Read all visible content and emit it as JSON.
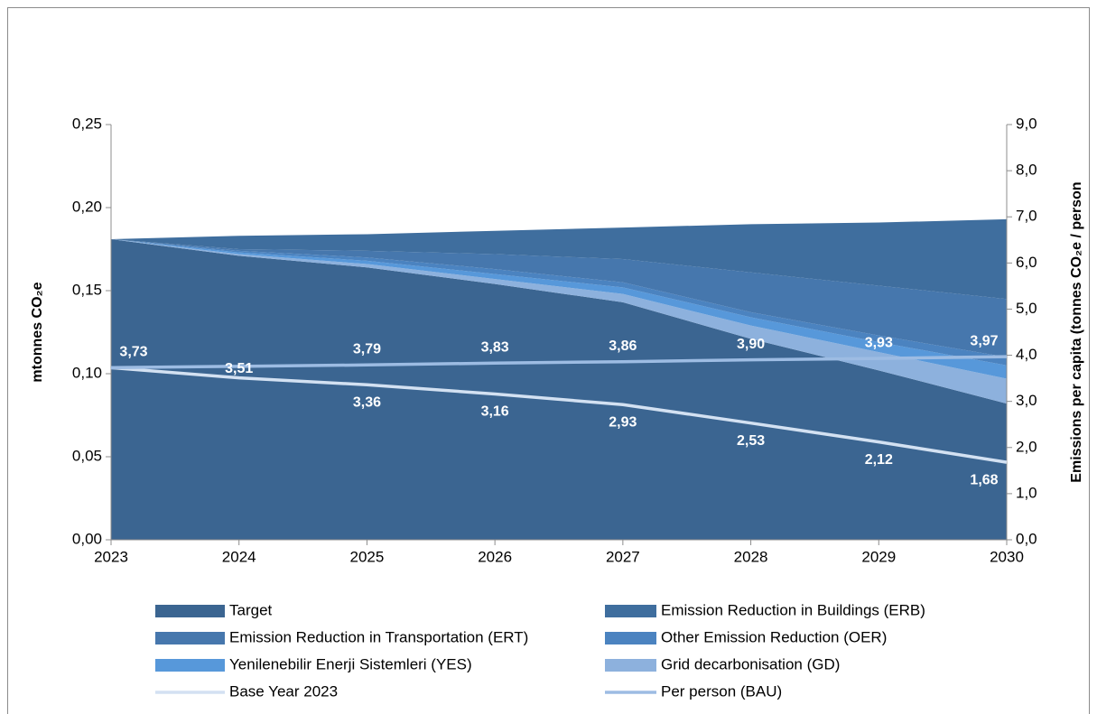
{
  "chart_data": {
    "type": "stacked_area",
    "categories": [
      "2023",
      "2024",
      "2025",
      "2026",
      "2027",
      "2028",
      "2029",
      "2030"
    ],
    "ylabel": "mtonnes CO₂e",
    "y2label": "Emissions per capita (tonnes CO₂e / person",
    "ylim": [
      0,
      0.25
    ],
    "yticks": [
      {
        "value": 0,
        "label": "0,00"
      },
      {
        "value": 0.05,
        "label": "0,05"
      },
      {
        "value": 0.1,
        "label": "0,10"
      },
      {
        "value": 0.15,
        "label": "0,15"
      },
      {
        "value": 0.2,
        "label": "0,20"
      },
      {
        "value": 0.25,
        "label": "0,25"
      }
    ],
    "y2lim": [
      0,
      9
    ],
    "y2ticks": [
      {
        "value": 0,
        "label": "0,0"
      },
      {
        "value": 1,
        "label": "1,0"
      },
      {
        "value": 2,
        "label": "2,0"
      },
      {
        "value": 3,
        "label": "3,0"
      },
      {
        "value": 4,
        "label": "4,0"
      },
      {
        "value": 5,
        "label": "5,0"
      },
      {
        "value": 6,
        "label": "6,0"
      },
      {
        "value": 7,
        "label": "7,0"
      },
      {
        "value": 8,
        "label": "8,0"
      },
      {
        "value": 9,
        "label": "9,0"
      }
    ],
    "series": [
      {
        "name": "Target",
        "color": "#3b6591",
        "values": [
          0.181,
          0.171,
          0.164,
          0.154,
          0.143,
          0.121,
          0.102,
          0.082
        ]
      },
      {
        "name": "Emission Reduction in Buildings (ERB)",
        "color": "#3f6e9e",
        "values": [
          0,
          0.008,
          0.01,
          0.014,
          0.019,
          0.029,
          0.038,
          0.048
        ],
        "stack_top": true
      },
      {
        "name": "Emission Reduction in Transportation (ERT)",
        "color": "#4677ad",
        "values": [
          0,
          0.001,
          0.004,
          0.009,
          0.014,
          0.024,
          0.03,
          0.035
        ]
      },
      {
        "name": "Other Emission Reduction (OER)",
        "color": "#4b83c0",
        "values": [
          0,
          0.001,
          0.002,
          0.003,
          0.003,
          0.003,
          0.004,
          0.005
        ]
      },
      {
        "name": "Yenilenebilir Enerji Sistemleri (YES)",
        "color": "#5798da",
        "values": [
          0,
          0.001,
          0.002,
          0.003,
          0.004,
          0.005,
          0.006,
          0.008
        ]
      },
      {
        "name": "Grid decarbonisation (GD)",
        "color": "#8db1dd",
        "values": [
          0,
          0.001,
          0.002,
          0.003,
          0.005,
          0.008,
          0.011,
          0.015
        ]
      },
      {
        "name": "Base Year 2023",
        "color": "#d3e1f2",
        "type": "line",
        "axis": "y2",
        "values": [
          3.73,
          3.51,
          3.36,
          3.16,
          2.93,
          2.53,
          2.12,
          1.68
        ],
        "value_labels": [
          "3,73",
          "3,51",
          "3,36",
          "3,16",
          "2,93",
          "2,53",
          "2,12",
          "1,68"
        ]
      },
      {
        "name": "Per person (BAU)",
        "color": "#9dbce3",
        "type": "line",
        "axis": "y2",
        "values": [
          3.73,
          3.76,
          3.79,
          3.83,
          3.86,
          3.9,
          3.93,
          3.97
        ],
        "value_labels": [
          null,
          null,
          "3,79",
          "3,83",
          "3,86",
          "3,90",
          "3,93",
          "3,97"
        ]
      }
    ]
  }
}
